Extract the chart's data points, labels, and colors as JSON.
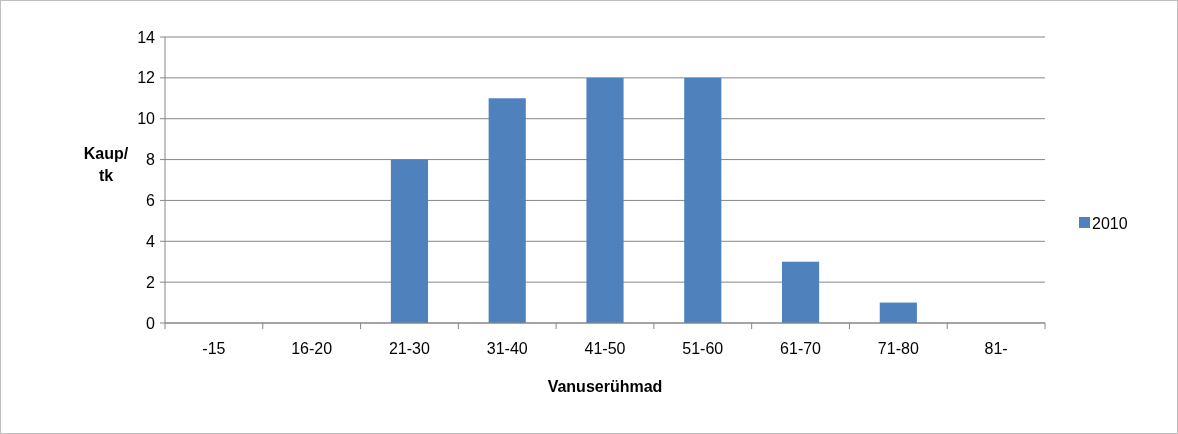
{
  "chart_data": {
    "type": "bar",
    "xlabel": "Vanuserühmad",
    "ylabel": "Kaup/\ntk",
    "categories": [
      "-15",
      "16-20",
      "21-30",
      "31-40",
      "41-50",
      "51-60",
      "61-70",
      "71-80",
      "81-"
    ],
    "series": [
      {
        "name": "2010",
        "color": "#4f81bd",
        "values": [
          0,
          0,
          8,
          11,
          12,
          12,
          3,
          1,
          0
        ]
      }
    ],
    "ylim": [
      0,
      14
    ],
    "yticks": [
      0,
      2,
      4,
      6,
      8,
      10,
      12,
      14
    ],
    "grid": "y",
    "legend": "right"
  }
}
